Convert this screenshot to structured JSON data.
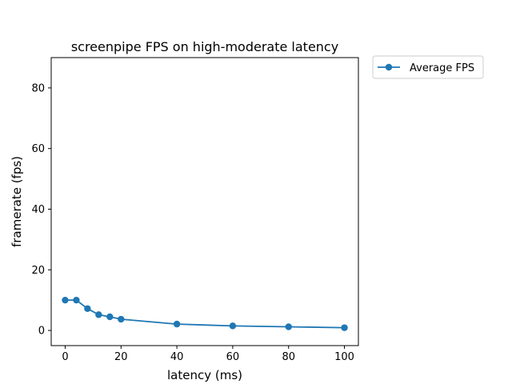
{
  "chart_data": {
    "type": "line",
    "title": "screenpipe FPS on high-moderate latency",
    "xlabel": "latency (ms)",
    "ylabel": "framerate (fps)",
    "xlim": [
      -5,
      105
    ],
    "ylim": [
      -5,
      90
    ],
    "xticks": [
      0,
      20,
      40,
      60,
      80,
      100
    ],
    "yticks": [
      0,
      20,
      40,
      60,
      80
    ],
    "grid": false,
    "legend_position": "outside top-right",
    "series": [
      {
        "name": "Average FPS",
        "color": "#1f77b4",
        "marker": "circle",
        "x": [
          0,
          4,
          8,
          12,
          16,
          20,
          40,
          60,
          80,
          100
        ],
        "y": [
          10.0,
          10.0,
          7.2,
          5.2,
          4.5,
          3.7,
          2.1,
          1.5,
          1.2,
          0.9
        ]
      }
    ]
  }
}
